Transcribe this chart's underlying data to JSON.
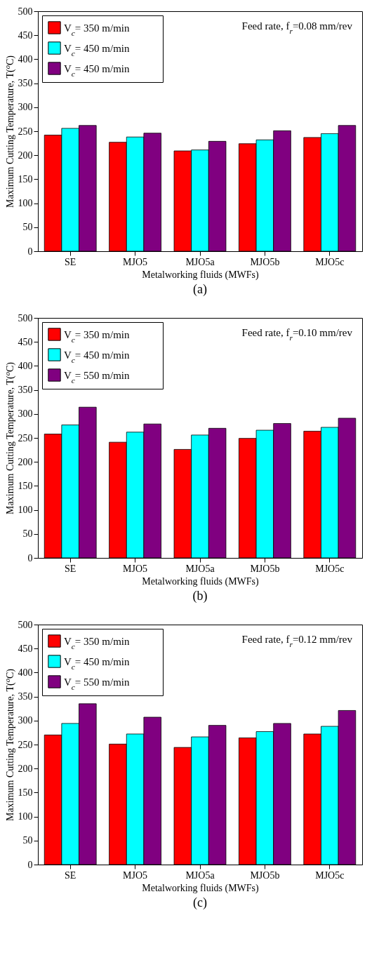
{
  "chart_data": [
    {
      "type": "bar",
      "title": "(a)",
      "xlabel": "Metalworking fluids (MWFs)",
      "ylabel": "Maximum Cutting Temperature, T($^{o}$C)",
      "categories": [
        "SE",
        "MJO5",
        "MJO5a",
        "MJO5b",
        "MJO5c"
      ],
      "ylim": [
        0,
        500
      ],
      "yticks": [
        0,
        50,
        100,
        150,
        200,
        250,
        300,
        350,
        400,
        450,
        500
      ],
      "legend": "top left",
      "annotations": [
        "Feed rate, f$_{r}$=0.08 mm/rev"
      ],
      "series": [
        {
          "name": "V$_{c}$= 350 m/min",
          "color": "#ff0000",
          "values": [
            242,
            227,
            209,
            224,
            237
          ]
        },
        {
          "name": "V$_{c}$= 450 m/min",
          "color": "#00ffff",
          "values": [
            256,
            238,
            211,
            232,
            245
          ]
        },
        {
          "name": "V$_{c}$= 450 m/min",
          "color": "#800080",
          "values": [
            262,
            246,
            229,
            251,
            262
          ]
        }
      ]
    },
    {
      "type": "bar",
      "title": "(b)",
      "xlabel": "Metalworking fluids (MWFs)",
      "ylabel": "Maximum Cutting Temperature, T($^{o}$C)",
      "categories": [
        "SE",
        "MJO5",
        "MJO5a",
        "MJO5b",
        "MJO5c"
      ],
      "ylim": [
        0,
        500
      ],
      "yticks": [
        0,
        50,
        100,
        150,
        200,
        250,
        300,
        350,
        400,
        450,
        500
      ],
      "legend": "top left",
      "annotations": [
        "Feed rate, f$_{r}$=0.10 mm/rev"
      ],
      "series": [
        {
          "name": "V$_{c}$= 350 m/min",
          "color": "#ff0000",
          "values": [
            258,
            241,
            226,
            249,
            264
          ]
        },
        {
          "name": "V$_{c}$= 450 m/min",
          "color": "#00ffff",
          "values": [
            277,
            262,
            256,
            266,
            272
          ]
        },
        {
          "name": "V$_{c}$= 550 m/min",
          "color": "#800080",
          "values": [
            314,
            279,
            270,
            280,
            291
          ]
        }
      ]
    },
    {
      "type": "bar",
      "title": "(c)",
      "xlabel": "Metalworking fluids (MWFs)",
      "ylabel": "Maximum Cutting Temperature, T($^{o}$C)",
      "categories": [
        "SE",
        "MJO5",
        "MJO5a",
        "MJO5b",
        "MJO5c"
      ],
      "ylim": [
        0,
        500
      ],
      "yticks": [
        0,
        50,
        100,
        150,
        200,
        250,
        300,
        350,
        400,
        450,
        500
      ],
      "legend": "top left",
      "annotations": [
        "Feed rate, f$_{r}$=0.12 mm/rev"
      ],
      "series": [
        {
          "name": "V$_{c}$= 350 m/min",
          "color": "#ff0000",
          "values": [
            270,
            251,
            244,
            264,
            272
          ]
        },
        {
          "name": "V$_{c}$= 450 m/min",
          "color": "#00ffff",
          "values": [
            294,
            272,
            266,
            277,
            288
          ]
        },
        {
          "name": "V$_{c}$= 550 m/min",
          "color": "#800080",
          "values": [
            335,
            307,
            290,
            294,
            321
          ]
        }
      ]
    }
  ]
}
